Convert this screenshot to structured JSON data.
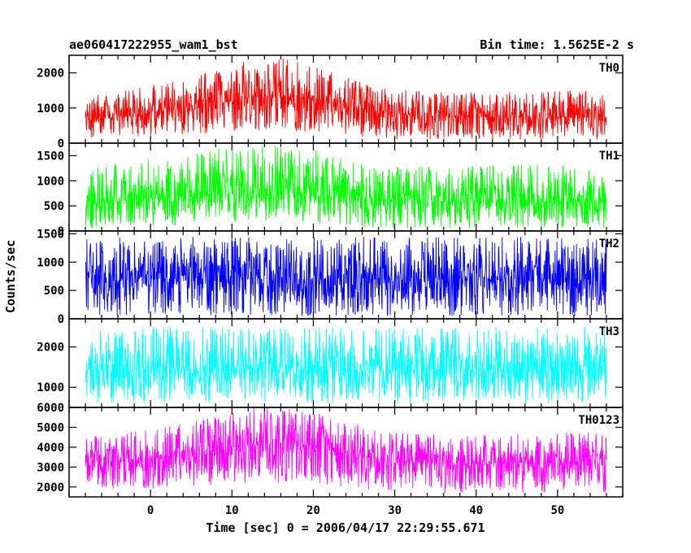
{
  "chart_data": {
    "type": "line",
    "title": "ae060417222955_wam1_bst",
    "subtitle": "Bin time: 1.5625E-2 s",
    "xlabel": "Time [sec] 0 = 2006/04/17 22:29:55.671",
    "ylabel": "Counts/sec",
    "xlim": [
      -10,
      58
    ],
    "x_ticks": [
      0,
      10,
      20,
      30,
      40,
      50
    ],
    "x_tick_labels": [
      "0",
      "10",
      "20",
      "30",
      "40",
      "50"
    ],
    "x_data_range": [
      -8.0,
      56.0
    ],
    "panels": [
      {
        "name": "TH0",
        "color": "#ff0000",
        "ylim": [
          0,
          2500
        ],
        "y_ticks": [
          0,
          1000,
          2000
        ],
        "y_tick_labels": [
          "0",
          "1000",
          "2000"
        ],
        "envelope": {
          "x": [
            -8,
            -4,
            0,
            4,
            8,
            12,
            16,
            20,
            24,
            28,
            32,
            36,
            40,
            44,
            48,
            52,
            56
          ],
          "low": [
            150,
            150,
            200,
            250,
            300,
            350,
            350,
            300,
            250,
            100,
            100,
            100,
            100,
            100,
            100,
            100,
            100
          ],
          "mean": [
            750,
            800,
            850,
            950,
            1100,
            1300,
            1350,
            1250,
            1050,
            900,
            800,
            750,
            750,
            750,
            750,
            750,
            750
          ],
          "high": [
            1350,
            1450,
            1650,
            1800,
            2100,
            2400,
            2450,
            2200,
            1900,
            1600,
            1500,
            1450,
            1450,
            1450,
            1500,
            1500,
            1450
          ]
        }
      },
      {
        "name": "TH1",
        "color": "#00ff00",
        "ylim": [
          0,
          1750
        ],
        "y_ticks": [
          0,
          500,
          1000,
          1500
        ],
        "y_tick_labels": [
          "0",
          "500",
          "1000",
          "1500"
        ],
        "envelope": {
          "x": [
            -8,
            -4,
            0,
            4,
            8,
            12,
            16,
            20,
            24,
            28,
            32,
            36,
            40,
            44,
            48,
            52,
            56
          ],
          "low": [
            50,
            50,
            100,
            100,
            150,
            200,
            200,
            150,
            100,
            50,
            50,
            50,
            50,
            50,
            50,
            50,
            50
          ],
          "mean": [
            550,
            600,
            650,
            700,
            750,
            800,
            800,
            750,
            700,
            650,
            600,
            600,
            600,
            600,
            600,
            600,
            600
          ],
          "high": [
            1250,
            1350,
            1450,
            1500,
            1650,
            1700,
            1700,
            1650,
            1450,
            1300,
            1300,
            1250,
            1300,
            1350,
            1350,
            1300,
            1300
          ]
        }
      },
      {
        "name": "TH2",
        "color": "#0000ff",
        "ylim": [
          0,
          1550
        ],
        "y_ticks": [
          0,
          500,
          1000,
          1500
        ],
        "y_tick_labels": [
          "0",
          "500",
          "1000",
          "1500"
        ],
        "envelope": {
          "x": [
            -8,
            56
          ],
          "low": [
            50,
            50
          ],
          "mean": [
            700,
            700
          ],
          "high": [
            1450,
            1450
          ]
        }
      },
      {
        "name": "TH3",
        "color": "#00ffff",
        "ylim": [
          500,
          2700
        ],
        "y_ticks": [
          1000,
          2000
        ],
        "y_tick_labels": [
          "1000",
          "2000"
        ],
        "envelope": {
          "x": [
            -8,
            56
          ],
          "low": [
            600,
            600
          ],
          "mean": [
            1450,
            1450
          ],
          "high": [
            2500,
            2500
          ]
        }
      },
      {
        "name": "TH0123",
        "color": "#ff00ff",
        "ylim": [
          1500,
          6000
        ],
        "y_ticks": [
          2000,
          3000,
          4000,
          5000,
          6000
        ],
        "y_tick_labels": [
          "2000",
          "3000",
          "4000",
          "5000",
          "6000"
        ],
        "envelope": {
          "x": [
            -8,
            -4,
            0,
            4,
            8,
            12,
            16,
            20,
            24,
            28,
            32,
            36,
            40,
            44,
            48,
            52,
            56
          ],
          "low": [
            1900,
            1900,
            1900,
            2000,
            2100,
            2200,
            2200,
            2100,
            2000,
            1800,
            1700,
            1700,
            1700,
            1700,
            1700,
            1700,
            1700
          ],
          "mean": [
            3200,
            3300,
            3400,
            3600,
            3800,
            4100,
            4200,
            4000,
            3700,
            3400,
            3300,
            3200,
            3200,
            3200,
            3200,
            3200,
            3200
          ],
          "high": [
            4500,
            4700,
            4900,
            5200,
            5600,
            6000,
            6000,
            5800,
            5300,
            4900,
            4700,
            4600,
            4600,
            4700,
            4700,
            4800,
            4700
          ]
        }
      }
    ]
  }
}
